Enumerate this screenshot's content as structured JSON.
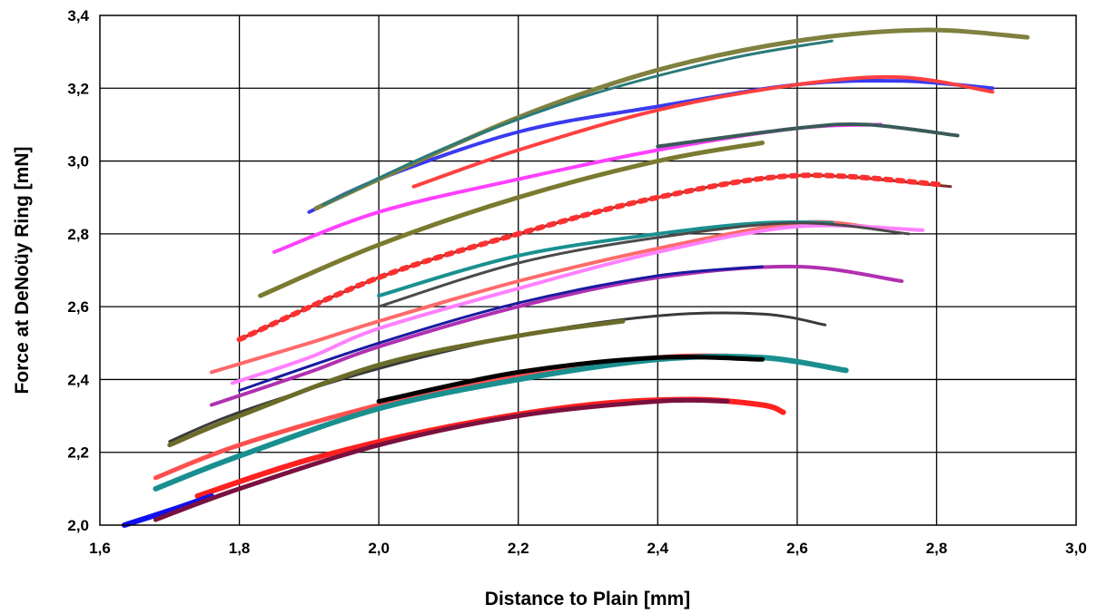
{
  "chart_data": {
    "type": "line",
    "title": "",
    "xlabel": "Distance to Plain [mm]",
    "ylabel": "Force at DeNoüy Ring [mN]",
    "xlim": [
      1.6,
      3.0
    ],
    "ylim": [
      2.0,
      3.4
    ],
    "grid": true,
    "legend": "none",
    "x_ticks": [
      "1,6",
      "1,8",
      "2,0",
      "2,2",
      "2,4",
      "2,6",
      "2,8",
      "3,0"
    ],
    "y_ticks": [
      "2,0",
      "2,2",
      "2,4",
      "2,6",
      "2,8",
      "3,0",
      "3,2",
      "3,4"
    ],
    "x_tick_values": [
      1.6,
      1.8,
      2.0,
      2.2,
      2.4,
      2.6,
      2.8,
      3.0
    ],
    "y_tick_values": [
      2.0,
      2.2,
      2.4,
      2.6,
      2.8,
      3.0,
      3.2,
      3.4
    ],
    "series": [
      {
        "color": "#ff2020",
        "width": 6,
        "points": [
          [
            1.74,
            2.08
          ],
          [
            1.9,
            2.18
          ],
          [
            2.1,
            2.27
          ],
          [
            2.3,
            2.33
          ],
          [
            2.45,
            2.345
          ],
          [
            2.55,
            2.33
          ],
          [
            2.58,
            2.31
          ]
        ]
      },
      {
        "color": "#1010ee",
        "width": 6,
        "points": [
          [
            1.635,
            2.0
          ],
          [
            1.7,
            2.04
          ],
          [
            1.76,
            2.08
          ]
        ]
      },
      {
        "color": "#7a1040",
        "width": 5,
        "points": [
          [
            1.68,
            2.015
          ],
          [
            1.8,
            2.1
          ],
          [
            2.0,
            2.22
          ],
          [
            2.2,
            2.3
          ],
          [
            2.4,
            2.34
          ],
          [
            2.5,
            2.34
          ]
        ]
      },
      {
        "color": "#ff5050",
        "width": 5,
        "points": [
          [
            1.68,
            2.13
          ],
          [
            1.8,
            2.22
          ],
          [
            2.0,
            2.33
          ],
          [
            2.2,
            2.41
          ],
          [
            2.4,
            2.46
          ],
          [
            2.5,
            2.465
          ]
        ]
      },
      {
        "color": "#1a8f8f",
        "width": 6,
        "points": [
          [
            1.68,
            2.1
          ],
          [
            1.8,
            2.19
          ],
          [
            2.0,
            2.32
          ],
          [
            2.2,
            2.4
          ],
          [
            2.4,
            2.455
          ],
          [
            2.55,
            2.46
          ],
          [
            2.67,
            2.425
          ]
        ]
      },
      {
        "color": "#000000",
        "width": 5,
        "points": [
          [
            2.0,
            2.34
          ],
          [
            2.2,
            2.42
          ],
          [
            2.4,
            2.46
          ],
          [
            2.55,
            2.455
          ]
        ]
      },
      {
        "color": "#3a3a3a",
        "width": 3,
        "points": [
          [
            1.7,
            2.23
          ],
          [
            1.8,
            2.31
          ],
          [
            2.0,
            2.43
          ],
          [
            2.2,
            2.52
          ],
          [
            2.4,
            2.575
          ],
          [
            2.55,
            2.58
          ],
          [
            2.64,
            2.55
          ]
        ]
      },
      {
        "color": "#6b6b2a",
        "width": 5,
        "points": [
          [
            1.7,
            2.22
          ],
          [
            1.8,
            2.3
          ],
          [
            2.0,
            2.44
          ],
          [
            2.2,
            2.52
          ],
          [
            2.35,
            2.56
          ]
        ]
      },
      {
        "color": "#b030b0",
        "width": 4,
        "points": [
          [
            1.76,
            2.33
          ],
          [
            1.9,
            2.42
          ],
          [
            2.0,
            2.49
          ],
          [
            2.2,
            2.6
          ],
          [
            2.4,
            2.68
          ],
          [
            2.6,
            2.71
          ],
          [
            2.75,
            2.67
          ]
        ]
      },
      {
        "color": "#1a1aa0",
        "width": 3,
        "points": [
          [
            1.8,
            2.37
          ],
          [
            2.0,
            2.5
          ],
          [
            2.2,
            2.61
          ],
          [
            2.4,
            2.685
          ],
          [
            2.55,
            2.71
          ]
        ]
      },
      {
        "color": "#ff6a6a",
        "width": 4,
        "points": [
          [
            1.76,
            2.42
          ],
          [
            1.9,
            2.5
          ],
          [
            2.0,
            2.56
          ],
          [
            2.2,
            2.67
          ],
          [
            2.4,
            2.76
          ],
          [
            2.6,
            2.83
          ],
          [
            2.7,
            2.82
          ]
        ]
      },
      {
        "color": "#ff80ff",
        "width": 4,
        "points": [
          [
            1.79,
            2.39
          ],
          [
            1.9,
            2.46
          ],
          [
            2.0,
            2.54
          ],
          [
            2.2,
            2.65
          ],
          [
            2.4,
            2.75
          ],
          [
            2.6,
            2.82
          ],
          [
            2.78,
            2.81
          ]
        ]
      },
      {
        "color": "#1a9090",
        "width": 4,
        "points": [
          [
            2.0,
            2.63
          ],
          [
            2.2,
            2.74
          ],
          [
            2.4,
            2.8
          ],
          [
            2.55,
            2.83
          ],
          [
            2.65,
            2.83
          ]
        ]
      },
      {
        "color": "#4a4a4a",
        "width": 3,
        "points": [
          [
            2.0,
            2.6
          ],
          [
            2.2,
            2.72
          ],
          [
            2.4,
            2.79
          ],
          [
            2.6,
            2.83
          ],
          [
            2.76,
            2.8
          ]
        ]
      },
      {
        "color": "#7a2a2a",
        "width": 3,
        "points": [
          [
            1.8,
            2.51
          ],
          [
            2.0,
            2.68
          ],
          [
            2.2,
            2.8
          ],
          [
            2.4,
            2.9
          ],
          [
            2.6,
            2.96
          ],
          [
            2.82,
            2.93
          ]
        ]
      },
      {
        "color": "#ff3030",
        "width": 6,
        "dashed": true,
        "points": [
          [
            1.8,
            2.51
          ],
          [
            2.0,
            2.68
          ],
          [
            2.2,
            2.8
          ],
          [
            2.4,
            2.9
          ],
          [
            2.6,
            2.96
          ],
          [
            2.81,
            2.935
          ]
        ]
      },
      {
        "color": "#7a7a30",
        "width": 5,
        "points": [
          [
            1.83,
            2.63
          ],
          [
            2.0,
            2.77
          ],
          [
            2.2,
            2.9
          ],
          [
            2.4,
            3.0
          ],
          [
            2.55,
            3.05
          ]
        ]
      },
      {
        "color": "#ff40ff",
        "width": 4,
        "points": [
          [
            1.85,
            2.75
          ],
          [
            2.0,
            2.86
          ],
          [
            2.2,
            2.95
          ],
          [
            2.4,
            3.03
          ],
          [
            2.6,
            3.09
          ],
          [
            2.72,
            3.1
          ]
        ]
      },
      {
        "color": "#3a5a5a",
        "width": 4,
        "points": [
          [
            2.4,
            3.04
          ],
          [
            2.6,
            3.09
          ],
          [
            2.7,
            3.1
          ],
          [
            2.83,
            3.07
          ]
        ]
      },
      {
        "color": "#3a3aee",
        "width": 4,
        "points": [
          [
            1.9,
            2.86
          ],
          [
            2.0,
            2.95
          ],
          [
            2.2,
            3.08
          ],
          [
            2.4,
            3.15
          ],
          [
            2.6,
            3.21
          ],
          [
            2.75,
            3.22
          ],
          [
            2.88,
            3.2
          ]
        ]
      },
      {
        "color": "#ff4040",
        "width": 4,
        "points": [
          [
            2.05,
            2.93
          ],
          [
            2.2,
            3.03
          ],
          [
            2.4,
            3.14
          ],
          [
            2.6,
            3.21
          ],
          [
            2.75,
            3.23
          ],
          [
            2.88,
            3.19
          ]
        ]
      },
      {
        "color": "#808040",
        "width": 5,
        "points": [
          [
            1.91,
            2.87
          ],
          [
            2.0,
            2.95
          ],
          [
            2.2,
            3.12
          ],
          [
            2.4,
            3.25
          ],
          [
            2.6,
            3.33
          ],
          [
            2.78,
            3.36
          ],
          [
            2.93,
            3.34
          ]
        ]
      },
      {
        "color": "#2a7a7a",
        "width": 3,
        "points": [
          [
            1.92,
            2.88
          ],
          [
            2.1,
            3.04
          ],
          [
            2.3,
            3.18
          ],
          [
            2.5,
            3.28
          ],
          [
            2.65,
            3.33
          ]
        ]
      }
    ]
  }
}
